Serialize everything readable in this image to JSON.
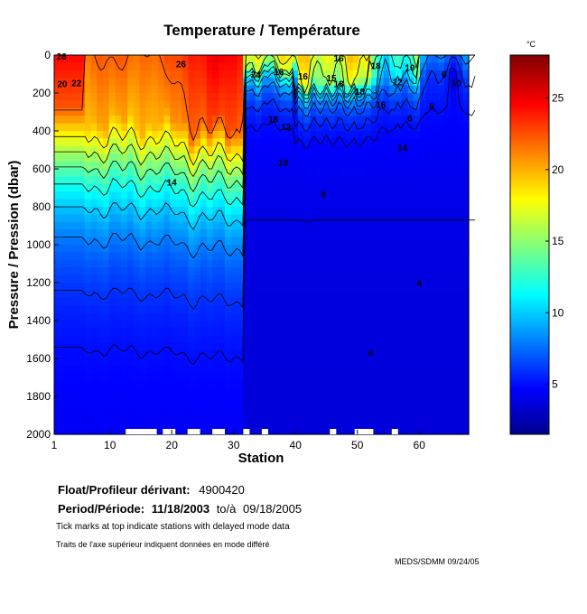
{
  "chart_data": {
    "type": "heatmap",
    "title": "Temperature / Température",
    "xlabel": "Station",
    "ylabel": "Pressure / Pression (dbar)",
    "xlim": [
      1,
      68
    ],
    "ylim": [
      0,
      2000
    ],
    "x_ticks": [
      1,
      10,
      20,
      30,
      40,
      50,
      60
    ],
    "y_ticks": [
      0,
      200,
      400,
      600,
      800,
      1000,
      1200,
      1400,
      1600,
      1800,
      2000
    ],
    "colorbar": {
      "unit": "°C",
      "range": [
        1.5,
        28
      ],
      "ticks": [
        5,
        10,
        15,
        20,
        25
      ],
      "colors": [
        "#00008f",
        "#0000ff",
        "#0080ff",
        "#00ffff",
        "#80ff80",
        "#ffff00",
        "#ff8000",
        "#ff0000",
        "#800000"
      ]
    },
    "contour_labels": [
      {
        "text": "26",
        "station": 2.2,
        "pressure": 5
      },
      {
        "text": "20",
        "station": 2.3,
        "pressure": 150
      },
      {
        "text": "22",
        "station": 4.6,
        "pressure": 145
      },
      {
        "text": "26",
        "station": 21.5,
        "pressure": 45
      },
      {
        "text": "24",
        "station": 33.6,
        "pressure": 100
      },
      {
        "text": "16",
        "station": 37.3,
        "pressure": 85
      },
      {
        "text": "16",
        "station": 41.2,
        "pressure": 110
      },
      {
        "text": "16",
        "station": 47.0,
        "pressure": 15
      },
      {
        "text": "15",
        "station": 45.8,
        "pressure": 120
      },
      {
        "text": "18",
        "station": 47.0,
        "pressure": 150
      },
      {
        "text": "18",
        "station": 50.4,
        "pressure": 190
      },
      {
        "text": "18",
        "station": 53.0,
        "pressure": 55
      },
      {
        "text": "16",
        "station": 53.8,
        "pressure": 260
      },
      {
        "text": "18",
        "station": 36.4,
        "pressure": 335
      },
      {
        "text": "12",
        "station": 38.5,
        "pressure": 375
      },
      {
        "text": "10",
        "station": 38.0,
        "pressure": 565
      },
      {
        "text": "14",
        "station": 20.0,
        "pressure": 670
      },
      {
        "text": "14",
        "station": 57.3,
        "pressure": 485
      },
      {
        "text": "8",
        "station": 44.5,
        "pressure": 730
      },
      {
        "text": "10",
        "station": 58.5,
        "pressure": 65
      },
      {
        "text": "10",
        "station": 66.0,
        "pressure": 145
      },
      {
        "text": "6",
        "station": 64.0,
        "pressure": 100
      },
      {
        "text": "6",
        "station": 58.5,
        "pressure": 330
      },
      {
        "text": "12",
        "station": 56.5,
        "pressure": 140
      },
      {
        "text": "5",
        "station": 62.0,
        "pressure": 270
      },
      {
        "text": "4",
        "station": 60.0,
        "pressure": 1200
      },
      {
        "text": "4",
        "station": 52.2,
        "pressure": 1570
      }
    ],
    "delayed_mode_station_ticks": [
      13,
      14,
      15,
      16,
      17,
      19,
      20,
      23,
      24,
      27,
      28,
      32,
      35,
      46,
      50,
      51,
      52,
      56
    ]
  },
  "info": {
    "float_label": "Float/Profileur dérivant:",
    "float_value": "4900420",
    "period_label": "Period/Période:",
    "period_start": "11/18/2003",
    "period_mid": "to/à",
    "period_end": "09/18/2005",
    "note_en": "Tick marks at top indicate stations with delayed mode data",
    "note_fr": "Traits de l'axe supérieur indiquent données en mode différé",
    "credit": "MEDS/SDMM  09/24/05"
  }
}
